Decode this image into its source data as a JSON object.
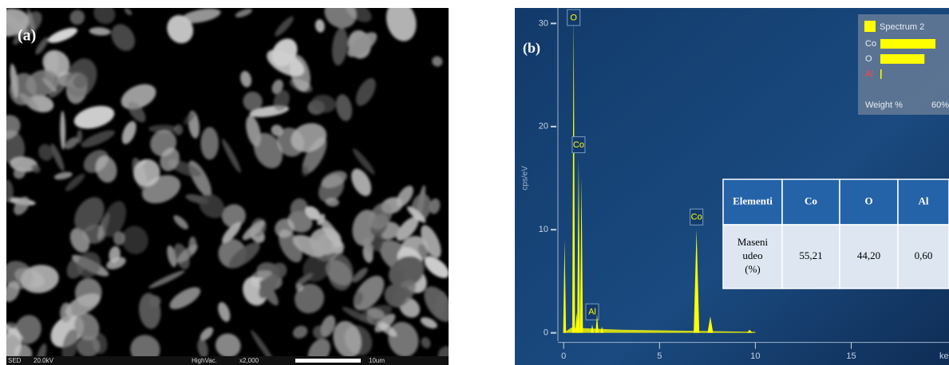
{
  "panel_a": {
    "label": "(a)",
    "footer": [
      "SED",
      "20.0kV",
      "HighVac.",
      "x2,000",
      "10um"
    ]
  },
  "chart_data": {
    "type": "spectrum",
    "label": "(b)",
    "ylabel": "cps/eV",
    "xlabel": "keV",
    "xlim": [
      -0.3,
      20.1
    ],
    "ylim": [
      -0.8,
      31.5
    ],
    "xticks": [
      0,
      5,
      10,
      15
    ],
    "yticks": [
      0,
      10,
      20,
      30
    ],
    "color": "#ffff00",
    "peaks": {
      "x": [
        0.05,
        0.52,
        0.68,
        0.78,
        0.93,
        1.49,
        1.74,
        2.0,
        6.93,
        7.65,
        9.7
      ],
      "values": [
        9,
        31,
        2,
        17,
        15,
        0.8,
        1.8,
        0.6,
        10,
        1.6,
        0.3
      ],
      "labels": [
        null,
        "O",
        null,
        "Co",
        null,
        "Al",
        null,
        null,
        "Co",
        null,
        null
      ]
    }
  },
  "legend_inset": {
    "title": "Spectrum 2",
    "xlabel": "Weight %",
    "xlim": [
      0,
      60
    ],
    "xticks": [
      {
        "value": 60,
        "label": "60%"
      }
    ],
    "categories": [
      "Co",
      "O",
      "Al"
    ],
    "values": [
      55.21,
      44.2,
      0.6
    ],
    "color": "#ffff00"
  },
  "table": {
    "header": [
      "Elementi",
      "Co",
      "O",
      "Al"
    ],
    "rows": [
      [
        "Maseni udeo (%)",
        "55,21",
        "44,20",
        "0,60"
      ]
    ]
  }
}
